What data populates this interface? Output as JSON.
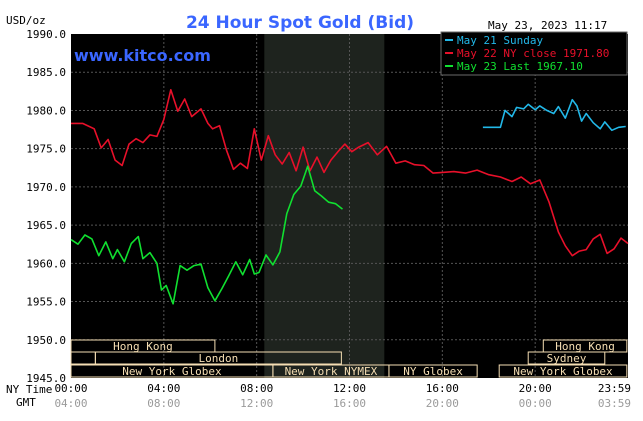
{
  "chart_data": {
    "type": "line",
    "title": "24 Hour Spot Gold (Bid)",
    "ylabel": "USD/oz",
    "timestamp": "May 23, 2023 11:17",
    "watermark": "www.kitco.com",
    "ylim": [
      1945.0,
      1990.0
    ],
    "yticks": [
      "1945.0",
      "1950.0",
      "1955.0",
      "1960.0",
      "1965.0",
      "1970.0",
      "1975.0",
      "1980.0",
      "1985.0",
      "1990.0"
    ],
    "xlim": [
      0,
      24
    ],
    "xticks": [
      {
        "h": 0,
        "label": "00:00",
        "gmt": "04:00"
      },
      {
        "h": 4,
        "label": "04:00",
        "gmt": "08:00"
      },
      {
        "h": 8,
        "label": "08:00",
        "gmt": "12:00"
      },
      {
        "h": 12,
        "label": "12:00",
        "gmt": "16:00"
      },
      {
        "h": 16,
        "label": "16:00",
        "gmt": "20:00"
      },
      {
        "h": 20,
        "label": "20:00",
        "gmt": "00:00"
      },
      {
        "h": 24,
        "label": "23:59",
        "gmt": "03:59"
      }
    ],
    "x_axis_label_ny": "NY Time",
    "x_axis_label_gmt": "GMT",
    "shaded_hours": [
      8.33,
      13.5
    ],
    "colors": {
      "background": "#000000",
      "grid": "#555555",
      "shade": "#1e231e",
      "title": "#3a66ff",
      "watermark": "#3a66ff",
      "axis_text": "#000000",
      "session_box": "#f5deb3"
    },
    "legend": [
      {
        "label": "May 21 Sunday",
        "color": "#22b8e8"
      },
      {
        "label": "May 22 NY close 1971.80",
        "color": "#e8102a"
      },
      {
        "label": "May 23 Last 1967.10",
        "color": "#10e030"
      }
    ],
    "series": [
      {
        "name": "May 21 Sunday",
        "color": "#22b8e8",
        "x": [
          17.75,
          18.2,
          18.5,
          18.7,
          19.0,
          19.2,
          19.5,
          19.7,
          20.0,
          20.2,
          20.5,
          20.8,
          21.0,
          21.3,
          21.6,
          21.8,
          22.0,
          22.2,
          22.5,
          22.8,
          23.0,
          23.3,
          23.6,
          23.9
        ],
        "values": [
          1977.8,
          1977.8,
          1977.8,
          1980.0,
          1979.2,
          1980.4,
          1980.2,
          1980.8,
          1980.1,
          1980.6,
          1980.0,
          1979.6,
          1980.5,
          1979.0,
          1981.4,
          1980.6,
          1978.6,
          1979.6,
          1978.4,
          1977.6,
          1978.5,
          1977.4,
          1977.8,
          1977.9
        ]
      },
      {
        "name": "May 22 NY close 1971.80",
        "color": "#e8102a",
        "x": [
          0.0,
          0.5,
          1.0,
          1.3,
          1.6,
          1.9,
          2.2,
          2.5,
          2.8,
          3.1,
          3.4,
          3.7,
          4.0,
          4.3,
          4.6,
          4.9,
          5.2,
          5.6,
          5.9,
          6.1,
          6.4,
          6.7,
          7.0,
          7.3,
          7.6,
          7.9,
          8.2,
          8.5,
          8.8,
          9.1,
          9.4,
          9.7,
          10.0,
          10.3,
          10.6,
          10.9,
          11.2,
          11.5,
          11.8,
          12.1,
          12.4,
          12.8,
          13.2,
          13.6,
          14.0,
          14.4,
          14.8,
          15.2,
          15.6,
          16.0,
          16.5,
          17.0,
          17.5,
          18.0,
          18.5,
          19.0,
          19.4,
          19.8,
          20.2,
          20.6,
          21.0,
          21.3,
          21.6,
          21.9,
          22.2,
          22.5,
          22.8,
          23.1,
          23.4,
          23.7,
          24.0
        ],
        "values": [
          1978.3,
          1978.3,
          1977.6,
          1975.1,
          1976.2,
          1973.5,
          1972.8,
          1975.6,
          1976.3,
          1975.8,
          1976.8,
          1976.6,
          1978.8,
          1982.7,
          1979.9,
          1981.5,
          1979.2,
          1980.2,
          1978.3,
          1977.6,
          1978.0,
          1974.8,
          1972.3,
          1973.1,
          1972.4,
          1977.6,
          1973.5,
          1976.7,
          1974.2,
          1973.0,
          1974.5,
          1972.1,
          1975.2,
          1972.1,
          1973.9,
          1971.9,
          1973.5,
          1974.6,
          1975.6,
          1974.6,
          1975.2,
          1975.8,
          1974.2,
          1975.3,
          1973.1,
          1973.4,
          1972.9,
          1972.8,
          1971.8,
          1971.9,
          1972.0,
          1971.8,
          1972.2,
          1971.6,
          1971.3,
          1970.7,
          1971.3,
          1970.4,
          1970.9,
          1968.0,
          1964.1,
          1962.3,
          1961.0,
          1961.6,
          1961.8,
          1963.2,
          1963.8,
          1961.3,
          1961.9,
          1963.3,
          1962.6
        ]
      },
      {
        "name": "May 23 Last 1967.10",
        "color": "#10e030",
        "x": [
          0.0,
          0.3,
          0.6,
          0.9,
          1.2,
          1.5,
          1.8,
          2.0,
          2.3,
          2.6,
          2.9,
          3.1,
          3.4,
          3.7,
          3.9,
          4.1,
          4.4,
          4.7,
          5.0,
          5.3,
          5.6,
          5.9,
          6.2,
          6.5,
          6.8,
          7.1,
          7.4,
          7.7,
          7.9,
          8.1,
          8.4,
          8.7,
          9.0,
          9.3,
          9.6,
          9.9,
          10.2,
          10.5,
          10.8,
          11.1,
          11.4,
          11.7
        ],
        "values": [
          1963.1,
          1962.5,
          1963.7,
          1963.2,
          1961.0,
          1962.8,
          1960.6,
          1961.8,
          1960.2,
          1962.6,
          1963.5,
          1960.6,
          1961.4,
          1960.0,
          1956.5,
          1957.1,
          1954.7,
          1959.7,
          1959.1,
          1959.7,
          1959.9,
          1956.8,
          1955.1,
          1956.7,
          1958.4,
          1960.2,
          1958.5,
          1960.5,
          1958.6,
          1958.8,
          1961.1,
          1959.8,
          1961.5,
          1966.5,
          1969.0,
          1970.1,
          1972.7,
          1969.5,
          1968.8,
          1968.0,
          1967.8,
          1967.1
        ]
      }
    ],
    "sessions": [
      {
        "label": "Hong Kong",
        "start": 0.0,
        "end": 6.2,
        "row": 0
      },
      {
        "label": "Hong Kong",
        "start": 20.35,
        "end": 23.95,
        "row": 0
      },
      {
        "label": "",
        "start": 0.0,
        "end": 1.05,
        "row": 1
      },
      {
        "label": "London",
        "start": 1.05,
        "end": 11.65,
        "row": 1
      },
      {
        "label": "Sydney",
        "start": 19.7,
        "end": 23.0,
        "row": 1
      },
      {
        "label": "New York Globex",
        "start": 0.0,
        "end": 8.7,
        "row": 2
      },
      {
        "label": "New York NYMEX",
        "start": 8.7,
        "end": 13.7,
        "row": 2
      },
      {
        "label": "NY Globex",
        "start": 13.7,
        "end": 17.5,
        "row": 2
      },
      {
        "label": "New York Globex",
        "start": 18.45,
        "end": 23.95,
        "row": 2
      }
    ]
  }
}
